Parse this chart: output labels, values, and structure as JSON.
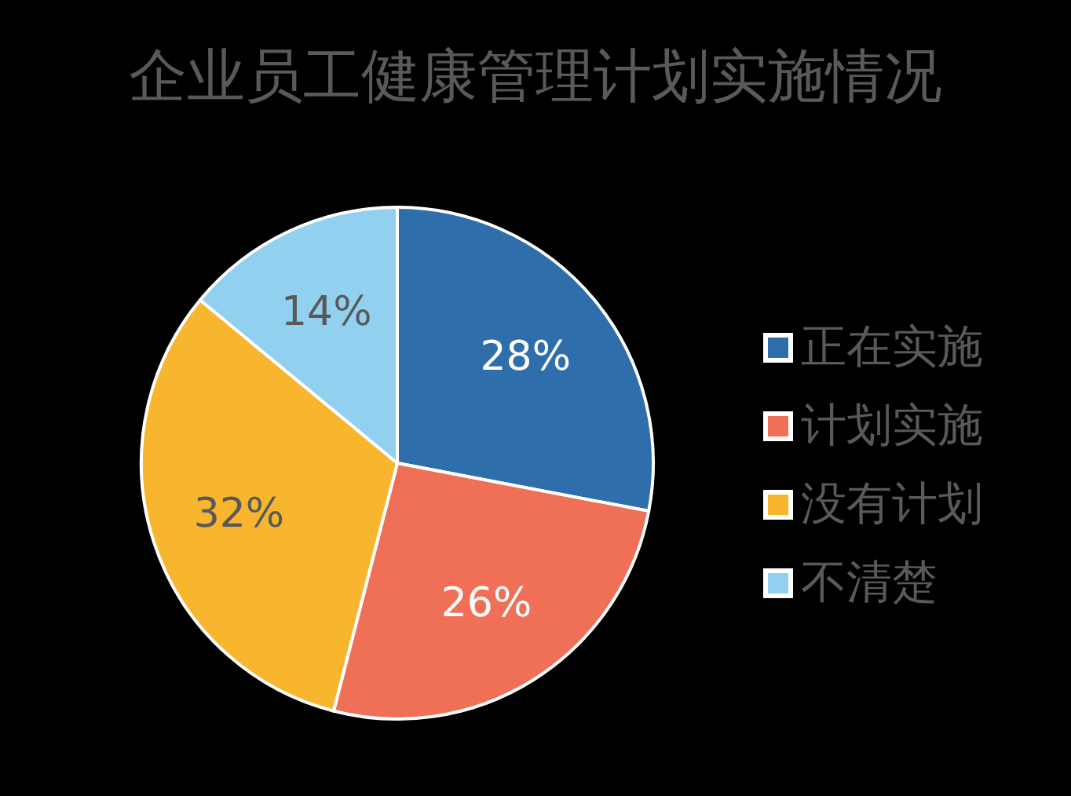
{
  "chart_data": {
    "type": "pie",
    "title": "企业员工健康管理计划实施情况",
    "categories": [
      "正在实施",
      "计划实施",
      "没有计划",
      "不清楚"
    ],
    "values": [
      28,
      26,
      32,
      14
    ],
    "value_labels": [
      "28%",
      "26%",
      "32%",
      "14%"
    ],
    "colors": [
      "#2e6eab",
      "#ef6f57",
      "#f7b62e",
      "#92d0f0"
    ],
    "legend": "right"
  }
}
